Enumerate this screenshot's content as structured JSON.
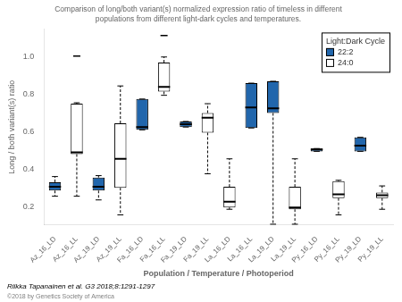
{
  "chart_data": {
    "type": "box",
    "title": "Comparison of long/both variant(s) normalized expression ratio of timeless in different\npopulations from different light-dark cycles and temperatures.",
    "x_label": "Population / Temperature / Photoperiod",
    "y_label": "Long / both variant(s) ratio",
    "ylim": [
      0.1,
      1.15
    ],
    "yticks": [
      0.2,
      0.4,
      0.6,
      0.8,
      {
        "value": 1.0,
        "label": "1.0"
      }
    ],
    "grid": false,
    "categories": [
      "Az_16_LD",
      "Az_16_LL",
      "Az_19_LD",
      "Az_19_LL",
      "Fa_16_LD",
      "Fa_16_LL",
      "Fa_19_LD",
      "Fa_19_LL",
      "La_16_LD",
      "La_16_LL",
      "La_19_LD",
      "La_19_LL",
      "Py_16_LD",
      "Py_16_LL",
      "Py_19_LD",
      "Py_19_LL"
    ],
    "boxes": [
      {
        "q1": 0.285,
        "median": 0.305,
        "q3": 0.33,
        "whislo": 0.255,
        "whishi": 0.36,
        "fliers": [],
        "color": "#2166ac"
      },
      {
        "q1": 0.48,
        "median": 0.49,
        "q3": 0.75,
        "whislo": 0.255,
        "whishi": 0.755,
        "fliers": [
          1.005
        ],
        "color": "white"
      },
      {
        "q1": 0.285,
        "median": 0.305,
        "q3": 0.355,
        "whislo": 0.235,
        "whishi": 0.365,
        "fliers": [],
        "color": "#2166ac"
      },
      {
        "q1": 0.3,
        "median": 0.455,
        "q3": 0.645,
        "whislo": 0.155,
        "whishi": 0.845,
        "fliers": [],
        "color": "white"
      },
      {
        "q1": 0.61,
        "median": 0.625,
        "q3": 0.775,
        "whislo": 0.61,
        "whishi": 0.775,
        "fliers": [],
        "color": "#2166ac"
      },
      {
        "q1": 0.815,
        "median": 0.84,
        "q3": 0.97,
        "whislo": 0.795,
        "whishi": 1.0,
        "fliers": [
          1.115
        ],
        "color": "white"
      },
      {
        "q1": 0.625,
        "median": 0.64,
        "q3": 0.655,
        "whislo": 0.625,
        "whishi": 0.655,
        "fliers": [],
        "color": "#2166ac"
      },
      {
        "q1": 0.595,
        "median": 0.675,
        "q3": 0.7,
        "whislo": 0.375,
        "whishi": 0.75,
        "fliers": [],
        "color": "white"
      },
      {
        "q1": 0.195,
        "median": 0.225,
        "q3": 0.305,
        "whislo": 0.185,
        "whishi": 0.455,
        "fliers": [],
        "color": "white"
      },
      {
        "q1": 0.62,
        "median": 0.73,
        "q3": 0.86,
        "whislo": 0.62,
        "whishi": 0.86,
        "fliers": [],
        "color": "#2166ac"
      },
      {
        "q1": 0.7,
        "median": 0.725,
        "q3": 0.87,
        "whislo": 0.105,
        "whishi": 0.87,
        "fliers": [],
        "color": "#2166ac"
      },
      {
        "q1": 0.185,
        "median": 0.195,
        "q3": 0.305,
        "whislo": 0.105,
        "whishi": 0.455,
        "fliers": [],
        "color": "white"
      },
      {
        "q1": 0.495,
        "median": 0.505,
        "q3": 0.51,
        "whislo": 0.495,
        "whishi": 0.51,
        "fliers": [],
        "color": "#2166ac"
      },
      {
        "q1": 0.245,
        "median": 0.265,
        "q3": 0.335,
        "whislo": 0.155,
        "whishi": 0.34,
        "fliers": [],
        "color": "white"
      },
      {
        "q1": 0.495,
        "median": 0.525,
        "q3": 0.57,
        "whislo": 0.495,
        "whishi": 0.57,
        "fliers": [],
        "color": "#2166ac"
      },
      {
        "q1": 0.245,
        "median": 0.26,
        "q3": 0.275,
        "whislo": 0.185,
        "whishi": 0.31,
        "fliers": [],
        "color": "white"
      }
    ],
    "legend": "upper right",
    "legend_title": "Light:Dark Cycle",
    "series": [
      {
        "name": "22:2",
        "color": "#2166ac"
      },
      {
        "name": "24:0",
        "color": "white"
      }
    ],
    "annotations": [
      "Riikka Tapanainen et al. G3 2018;8:1291-1297",
      "©2018 by Genetics Society of America"
    ]
  }
}
